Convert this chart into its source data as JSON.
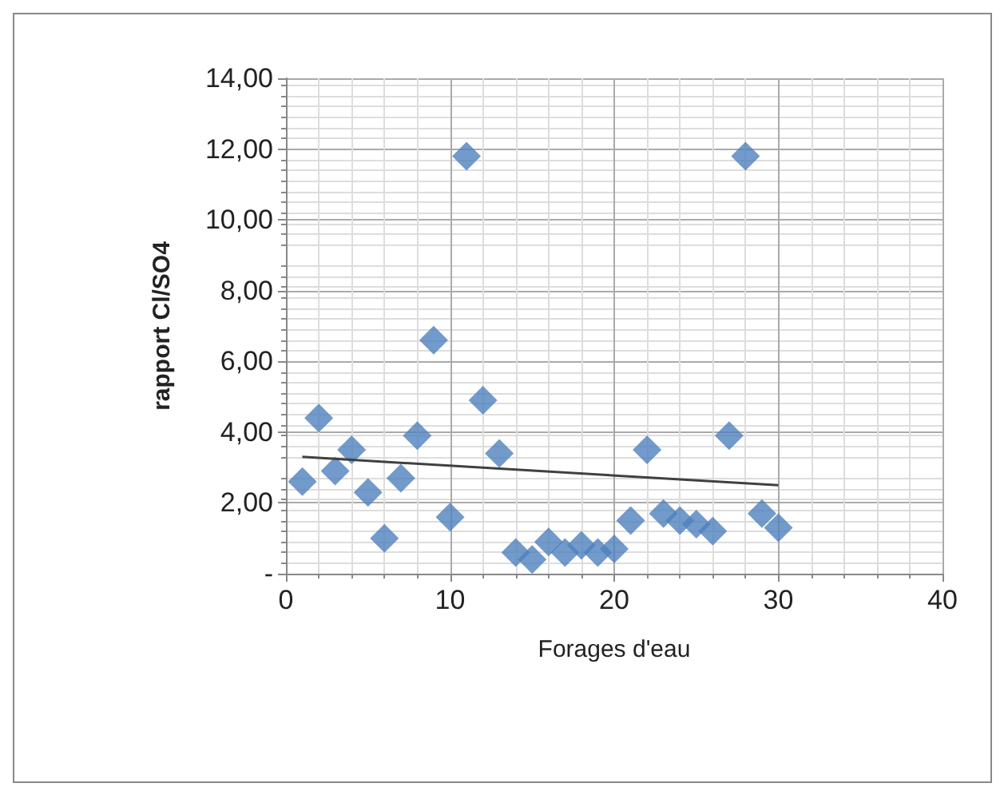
{
  "chart_data": {
    "type": "scatter",
    "xlabel": "Forages d'eau",
    "ylabel": "rapport Cl/SO4",
    "x": [
      1,
      2,
      3,
      4,
      5,
      6,
      7,
      8,
      9,
      10,
      11,
      12,
      13,
      14,
      15,
      16,
      17,
      18,
      19,
      20,
      21,
      22,
      23,
      24,
      25,
      26,
      27,
      28,
      29,
      30
    ],
    "series": [
      {
        "color": "#4f81bd",
        "marker": "diamond",
        "values": [
          2.6,
          4.4,
          2.9,
          3.5,
          2.3,
          1.0,
          2.7,
          3.9,
          6.6,
          1.6,
          11.8,
          4.9,
          3.4,
          0.6,
          0.4,
          0.9,
          0.6,
          0.8,
          0.6,
          0.7,
          1.5,
          3.5,
          1.7,
          1.5,
          1.4,
          1.2,
          3.9,
          11.8,
          1.7,
          1.3
        ]
      },
      {
        "type": "line",
        "color": "#404040",
        "marker": "none",
        "x": [
          1,
          30
        ],
        "values": [
          3.3,
          2.5
        ]
      }
    ],
    "xlim": [
      0,
      40
    ],
    "xticks": [
      0,
      10,
      20,
      30,
      40
    ],
    "ylim": [
      0,
      14
    ],
    "yticks": [
      {
        "value": 0,
        "label": "-"
      },
      {
        "value": 2,
        "label": "2,00"
      },
      {
        "value": 4,
        "label": "4,00"
      },
      {
        "value": 6,
        "label": "6,00"
      },
      {
        "value": 8,
        "label": "8,00"
      },
      {
        "value": 10,
        "label": "10,00"
      },
      {
        "value": 12,
        "label": "12,00"
      },
      {
        "value": 14,
        "label": "14,00"
      }
    ],
    "grid": true
  }
}
